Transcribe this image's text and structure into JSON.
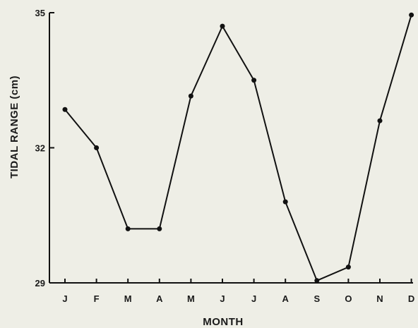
{
  "chart_data": {
    "type": "line",
    "title": "",
    "xlabel": "MONTH",
    "ylabel": "TIDAL RANGE (cm)",
    "categories": [
      "J",
      "F",
      "M",
      "A",
      "M",
      "J",
      "J",
      "A",
      "S",
      "O",
      "N",
      "D"
    ],
    "series": [
      {
        "values": [
          32.85,
          32.0,
          30.2,
          30.2,
          33.15,
          34.7,
          33.5,
          30.8,
          29.05,
          29.35,
          32.6,
          34.95
        ]
      }
    ],
    "yticks": [
      29,
      32,
      35
    ],
    "ylim": [
      29,
      35
    ],
    "grid": false,
    "line_color": "#111111"
  }
}
